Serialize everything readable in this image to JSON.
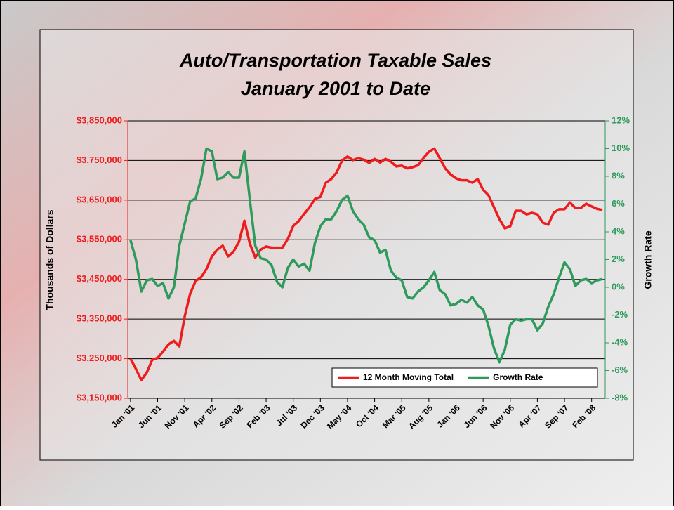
{
  "chart_data": {
    "type": "line",
    "title": "Auto/Transportation Taxable Sales",
    "subtitle": "January 2001 to Date",
    "y_label": "Thousands of Dollars",
    "y2_label": "Growth Rate",
    "categories": [
      "Jan '01",
      null,
      null,
      null,
      null,
      "Jun '01",
      null,
      null,
      null,
      null,
      "Nov '01",
      null,
      null,
      null,
      null,
      "Apr '02",
      null,
      null,
      null,
      null,
      "Sep '02",
      null,
      null,
      null,
      null,
      "Feb '03",
      null,
      null,
      null,
      null,
      "Jul '03",
      null,
      null,
      null,
      null,
      "Dec '03",
      null,
      null,
      null,
      null,
      "May '04",
      null,
      null,
      null,
      null,
      "Oct '04",
      null,
      null,
      null,
      null,
      "Mar '05",
      null,
      null,
      null,
      null,
      "Aug '05",
      null,
      null,
      null,
      null,
      "Jan '06",
      null,
      null,
      null,
      null,
      "Jun '06",
      null,
      null,
      null,
      null,
      "Nov '06",
      null,
      null,
      null,
      null,
      "Apr '07",
      null,
      null,
      null,
      null,
      "Sep '07",
      null,
      null,
      null,
      null,
      "Feb '08",
      null,
      null
    ],
    "series": [
      {
        "name": "12 Month Moving Total",
        "color": "#ee1c1c",
        "axis": "y",
        "values": [
          3250000,
          3224000,
          3196000,
          3215000,
          3247000,
          3252000,
          3268000,
          3286000,
          3295000,
          3281000,
          3357000,
          3414000,
          3446000,
          3455000,
          3476000,
          3508000,
          3525000,
          3535000,
          3508000,
          3520000,
          3545000,
          3598000,
          3540000,
          3505000,
          3525000,
          3533000,
          3530000,
          3530000,
          3530000,
          3552000,
          3585000,
          3597000,
          3615000,
          3632000,
          3653000,
          3658000,
          3694000,
          3703000,
          3720000,
          3750000,
          3760000,
          3751000,
          3756000,
          3752000,
          3744000,
          3754000,
          3745000,
          3754000,
          3747000,
          3735000,
          3737000,
          3730000,
          3733000,
          3738000,
          3756000,
          3772000,
          3780000,
          3756000,
          3730000,
          3715000,
          3705000,
          3700000,
          3700000,
          3694000,
          3703000,
          3676000,
          3662000,
          3632000,
          3602000,
          3579000,
          3584000,
          3623000,
          3623000,
          3614000,
          3618000,
          3614000,
          3593000,
          3588000,
          3618000,
          3627000,
          3627000,
          3644000,
          3630000,
          3630000,
          3641000,
          3634000,
          3628000,
          3625000
        ]
      },
      {
        "name": "Growth Rate",
        "color": "#2e9a5c",
        "axis": "y2",
        "values": [
          3.4,
          2.0,
          -0.3,
          0.5,
          0.6,
          0.1,
          0.3,
          -0.8,
          0.0,
          3.0,
          4.6,
          6.2,
          6.4,
          7.8,
          10.0,
          9.8,
          7.8,
          7.9,
          8.3,
          7.9,
          7.9,
          9.8,
          6.3,
          3.0,
          2.1,
          2.0,
          1.6,
          0.4,
          0.0,
          1.4,
          2.0,
          1.5,
          1.7,
          1.2,
          3.2,
          4.4,
          4.9,
          4.9,
          5.5,
          6.3,
          6.6,
          5.5,
          4.9,
          4.5,
          3.6,
          3.4,
          2.5,
          2.7,
          1.2,
          0.7,
          0.5,
          -0.7,
          -0.8,
          -0.3,
          0.0,
          0.5,
          1.1,
          -0.2,
          -0.5,
          -1.3,
          -1.2,
          -0.9,
          -1.1,
          -0.7,
          -1.3,
          -1.6,
          -2.8,
          -4.4,
          -5.4,
          -4.5,
          -2.7,
          -2.3,
          -2.4,
          -2.3,
          -2.3,
          -3.1,
          -2.6,
          -1.4,
          -0.5,
          0.7,
          1.8,
          1.3,
          0.1,
          0.5,
          0.6,
          0.3,
          0.5,
          0.6
        ]
      }
    ],
    "ylim": [
      3150000,
      3850000
    ],
    "yticks": [
      {
        "value": 3150000,
        "label": "$3,150,000"
      },
      {
        "value": 3250000,
        "label": "$3,250,000"
      },
      {
        "value": 3350000,
        "label": "$3,350,000"
      },
      {
        "value": 3450000,
        "label": "$3,450,000"
      },
      {
        "value": 3550000,
        "label": "$3,550,000"
      },
      {
        "value": 3650000,
        "label": "$3,650,000"
      },
      {
        "value": 3750000,
        "label": "$3,750,000"
      },
      {
        "value": 3850000,
        "label": "$3,850,000"
      }
    ],
    "y2lim": [
      -8,
      12
    ],
    "y2ticks": [
      {
        "value": -8,
        "label": "-8%"
      },
      {
        "value": -6,
        "label": "-6%"
      },
      {
        "value": -4,
        "label": "-4%"
      },
      {
        "value": -2,
        "label": "-2%"
      },
      {
        "value": 0,
        "label": "0%"
      },
      {
        "value": 2,
        "label": "2%"
      },
      {
        "value": 4,
        "label": "4%"
      },
      {
        "value": 6,
        "label": "6%"
      },
      {
        "value": 8,
        "label": "8%"
      },
      {
        "value": 10,
        "label": "10%"
      },
      {
        "value": 12,
        "label": "12%"
      }
    ],
    "y_color": "#ee1c1c",
    "y2_color": "#2e9a5c",
    "grid": true,
    "legend": "lower right"
  }
}
